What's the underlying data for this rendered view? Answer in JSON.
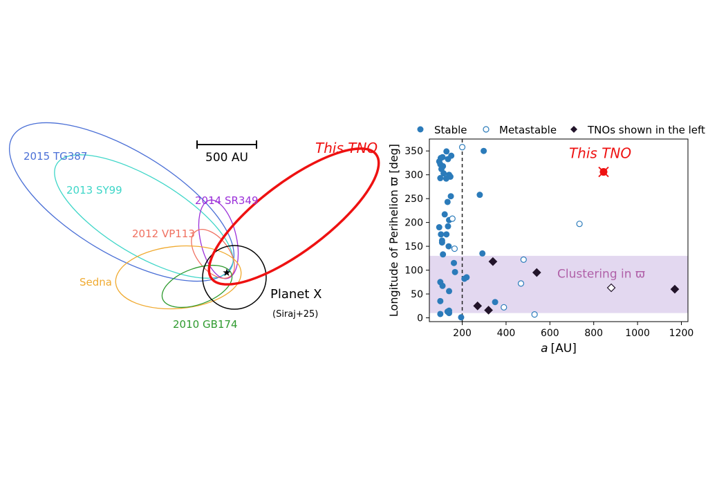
{
  "left_panel": {
    "scale_bar_label": "500 AU",
    "orbits": [
      {
        "name": "2015 TG387",
        "color": "#4a6fd6"
      },
      {
        "name": "2013 SY99",
        "color": "#3ed6c8"
      },
      {
        "name": "2014 SR349",
        "color": "#9b30d9"
      },
      {
        "name": "2012 VP113",
        "color": "#f07060"
      },
      {
        "name": "Sedna",
        "color": "#f0aa30"
      },
      {
        "name": "2010 GB174",
        "color": "#2e9a2e"
      },
      {
        "name": "This TNO",
        "color": "#ee1111"
      }
    ],
    "planet_x": {
      "label": "Planet X",
      "reference": "(Siraj+25)"
    }
  },
  "chart_data": {
    "type": "scatter",
    "xlabel_italic": "a",
    "xlabel_unit": "[AU]",
    "ylabel": "Longitude of Perihelion ϖ [deg]",
    "xlim": [
      50,
      1230
    ],
    "ylim": [
      -8,
      375
    ],
    "xticks": [
      200,
      400,
      600,
      800,
      1000,
      1200
    ],
    "yticks": [
      0,
      50,
      100,
      150,
      200,
      250,
      300,
      350
    ],
    "legend": [
      "Stable",
      "Metastable",
      "TNOs shown in the left"
    ],
    "legend_placement": "top",
    "divider_x": 200,
    "band": {
      "y": [
        10,
        130
      ],
      "label": "Clustering in ϖ",
      "color": "#e3d8f0"
    },
    "highlight": {
      "label": "This TNO",
      "a": 845,
      "varpi": 306,
      "color": "#ee1111"
    },
    "colors": {
      "stable": "#2b7bba",
      "metastable": "#2b7bba",
      "shown": "#22142a"
    },
    "series": [
      {
        "name": "Stable",
        "style": "filled-circle",
        "points": [
          [
            95,
            328
          ],
          [
            100,
            322
          ],
          [
            102,
            335
          ],
          [
            110,
            337
          ],
          [
            112,
            318
          ],
          [
            105,
            312
          ],
          [
            115,
            303
          ],
          [
            128,
            349
          ],
          [
            135,
            333
          ],
          [
            150,
            340
          ],
          [
            140,
            300
          ],
          [
            146,
            296
          ],
          [
            100,
            293
          ],
          [
            127,
            292
          ],
          [
            133,
            243
          ],
          [
            148,
            255
          ],
          [
            120,
            217
          ],
          [
            140,
            205
          ],
          [
            95,
            190
          ],
          [
            135,
            192
          ],
          [
            103,
            175
          ],
          [
            128,
            175
          ],
          [
            108,
            162
          ],
          [
            108,
            158
          ],
          [
            138,
            150
          ],
          [
            112,
            133
          ],
          [
            162,
            115
          ],
          [
            167,
            96
          ],
          [
            220,
            85
          ],
          [
            210,
            82
          ],
          [
            100,
            75
          ],
          [
            110,
            67
          ],
          [
            140,
            56
          ],
          [
            100,
            35
          ],
          [
            140,
            15
          ],
          [
            133,
            13
          ],
          [
            100,
            8
          ],
          [
            140,
            10
          ],
          [
            195,
            1
          ],
          [
            298,
            350
          ],
          [
            280,
            258
          ],
          [
            292,
            135
          ],
          [
            350,
            33
          ]
        ]
      },
      {
        "name": "Metastable",
        "style": "open-circle",
        "points": [
          [
            200,
            358
          ],
          [
            155,
            208
          ],
          [
            165,
            145
          ],
          [
            480,
            122
          ],
          [
            468,
            72
          ],
          [
            390,
            22
          ],
          [
            530,
            7
          ],
          [
            735,
            197
          ]
        ]
      },
      {
        "name": "TNOs shown in the left",
        "style": "diamond",
        "points": [
          [
            340,
            118,
            1
          ],
          [
            540,
            95,
            1
          ],
          [
            270,
            25,
            1
          ],
          [
            320,
            16,
            1
          ],
          [
            1170,
            60,
            1
          ],
          [
            880,
            63,
            0
          ]
        ]
      }
    ]
  }
}
